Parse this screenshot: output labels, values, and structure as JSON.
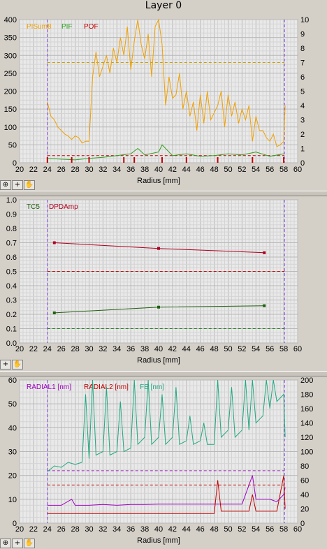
{
  "title": "Layer 0",
  "tool_icons": [
    "crosshair-icon",
    "plus-icon",
    "hand-icon"
  ],
  "chart_data": [
    {
      "type": "line",
      "xlabel": "Radius [mm]",
      "xlim": [
        20,
        60
      ],
      "xticks": [
        20,
        22,
        24,
        26,
        28,
        30,
        32,
        34,
        36,
        38,
        40,
        42,
        44,
        46,
        48,
        50,
        52,
        54,
        56,
        58,
        60
      ],
      "ylim": [
        0,
        400
      ],
      "yticks": [
        0,
        50,
        100,
        150,
        200,
        250,
        300,
        350,
        400
      ],
      "y2lim": [
        0,
        10
      ],
      "y2ticks": [
        0,
        1,
        2,
        3,
        4,
        5,
        6,
        7,
        8,
        9,
        10
      ],
      "grid": true,
      "markers": [
        24,
        58.1
      ],
      "thresholds": [
        {
          "y": 280,
          "color": "#c8a000"
        },
        {
          "y": 20,
          "color": "#c00000"
        }
      ],
      "series": [
        {
          "name": "PISum8",
          "color": "#f0a000",
          "axis": "left",
          "x": [
            24,
            24.5,
            25,
            25.5,
            26,
            26.5,
            27,
            27.5,
            28,
            28.5,
            29,
            29.5,
            30,
            30.5,
            31,
            31.5,
            32,
            32.5,
            33,
            33.5,
            34,
            34.5,
            35,
            35.5,
            36,
            36.5,
            37,
            37.5,
            38,
            38.5,
            39,
            39.5,
            40,
            40.5,
            41,
            41.5,
            42,
            42.5,
            43,
            43.5,
            44,
            44.5,
            45,
            45.5,
            46,
            46.5,
            47,
            47.5,
            48,
            48.5,
            49,
            49.5,
            50,
            50.5,
            51,
            51.5,
            52,
            52.5,
            53,
            53.5,
            54,
            54.5,
            55,
            55.5,
            56,
            56.5,
            57,
            57.5,
            58,
            58.2
          ],
          "y": [
            170,
            130,
            120,
            100,
            90,
            80,
            75,
            65,
            75,
            70,
            55,
            60,
            60,
            240,
            310,
            240,
            270,
            300,
            250,
            320,
            280,
            350,
            300,
            380,
            260,
            340,
            400,
            330,
            290,
            360,
            240,
            380,
            400,
            330,
            160,
            240,
            180,
            190,
            250,
            150,
            200,
            130,
            170,
            90,
            190,
            110,
            200,
            120,
            140,
            160,
            200,
            100,
            190,
            130,
            170,
            110,
            150,
            120,
            160,
            60,
            130,
            90,
            90,
            70,
            60,
            80,
            45,
            50,
            60,
            160
          ]
        },
        {
          "name": "PIF",
          "color": "#30a020",
          "axis": "left",
          "x": [
            24,
            26,
            28,
            30,
            32,
            34,
            36,
            37,
            38,
            40,
            40.5,
            42,
            44,
            46,
            48,
            50,
            52,
            54,
            56,
            58
          ],
          "y": [
            12,
            10,
            8,
            12,
            15,
            20,
            25,
            40,
            22,
            30,
            50,
            20,
            25,
            18,
            20,
            25,
            22,
            30,
            18,
            25
          ]
        },
        {
          "name": "POF",
          "color": "#c00000",
          "axis": "left",
          "x": [
            24,
            27.5,
            30,
            35,
            36.5,
            40.5,
            44,
            48.5,
            53.5,
            58
          ],
          "y": [
            2,
            2,
            2,
            2,
            2,
            2,
            2,
            2,
            2,
            2
          ]
        }
      ]
    },
    {
      "type": "line",
      "xlabel": "Radius [mm]",
      "xlim": [
        20,
        60
      ],
      "xticks": [
        20,
        22,
        24,
        26,
        28,
        30,
        32,
        34,
        36,
        38,
        40,
        42,
        44,
        46,
        48,
        50,
        52,
        54,
        56,
        58,
        60
      ],
      "ylim": [
        0,
        1
      ],
      "yticks": [
        0,
        0.1,
        0.2,
        0.3,
        0.4,
        0.5,
        0.6,
        0.7,
        0.8,
        0.9,
        1.0
      ],
      "grid": true,
      "markers": [
        24,
        58.1
      ],
      "thresholds": [
        {
          "y": 0.5,
          "color": "#c00000"
        },
        {
          "y": 0.1,
          "color": "#208020"
        }
      ],
      "series": [
        {
          "name": "TC5",
          "color": "#206010",
          "axis": "left",
          "x": [
            25,
            40,
            55.2
          ],
          "y": [
            0.21,
            0.25,
            0.26
          ]
        },
        {
          "name": "DPDAmp",
          "color": "#b00020",
          "axis": "left",
          "x": [
            25,
            40,
            55.2
          ],
          "y": [
            0.7,
            0.66,
            0.63
          ]
        }
      ]
    },
    {
      "type": "line",
      "xlabel": "Radius [mm]",
      "xlim": [
        20,
        60
      ],
      "xticks": [
        20,
        22,
        24,
        26,
        28,
        30,
        32,
        34,
        36,
        38,
        40,
        42,
        44,
        46,
        48,
        50,
        52,
        54,
        56,
        58,
        60
      ],
      "ylim": [
        0,
        60
      ],
      "yticks": [
        0,
        10,
        20,
        30,
        40,
        50,
        60
      ],
      "y2lim": [
        0,
        200
      ],
      "y2ticks": [
        0,
        20,
        40,
        60,
        80,
        100,
        120,
        140,
        160,
        180,
        200
      ],
      "grid": true,
      "markers": [
        24,
        58.1
      ],
      "thresholds": [
        {
          "y": 22,
          "color": "#a020c0"
        },
        {
          "y": 16,
          "color": "#c00000"
        }
      ],
      "series": [
        {
          "name": "RADIAL1 [nm]",
          "color": "#a000c0",
          "axis": "left",
          "x": [
            24,
            26,
            27.5,
            28,
            30,
            32,
            34,
            36,
            38,
            40,
            42,
            44,
            46,
            48,
            50,
            52,
            53.5,
            54,
            56,
            57,
            58,
            58.2
          ],
          "y": [
            7.5,
            7.5,
            10,
            7.5,
            7.5,
            7.8,
            7.5,
            7.8,
            7.8,
            8,
            8,
            8,
            8,
            8,
            8,
            8,
            20,
            10,
            10,
            9,
            12,
            15
          ]
        },
        {
          "name": "RADIAL2 [nm]",
          "color": "#c00000",
          "axis": "left",
          "x": [
            24,
            26,
            28,
            30,
            32,
            34,
            36,
            38,
            40,
            42,
            44,
            46,
            48,
            48.5,
            49,
            50,
            52,
            53,
            53.5,
            54,
            56,
            57,
            58,
            58.2
          ],
          "y": [
            4,
            4,
            4,
            4,
            4,
            4,
            4,
            4,
            4,
            4,
            4,
            4,
            4,
            18,
            5,
            5,
            5,
            5,
            12,
            5,
            5,
            5,
            20,
            6
          ]
        },
        {
          "name": "FE [nm]",
          "color": "#20a880",
          "axis": "right",
          "x": [
            24,
            25,
            26,
            27,
            28,
            29,
            29.5,
            30,
            30.5,
            31,
            32,
            32.5,
            33,
            34,
            34.5,
            35,
            36,
            36.5,
            37,
            38,
            38.5,
            39,
            40,
            40.5,
            41,
            42,
            42.5,
            43,
            44,
            44.5,
            45,
            46,
            46.5,
            47,
            48,
            48.5,
            49,
            50,
            50.5,
            51,
            52,
            52.5,
            53,
            53.5,
            54,
            55,
            55.5,
            56,
            56.5,
            57,
            58,
            58.2
          ],
          "y": [
            72,
            80,
            78,
            85,
            82,
            85,
            180,
            90,
            200,
            95,
            100,
            190,
            95,
            100,
            170,
            100,
            105,
            200,
            110,
            120,
            200,
            110,
            120,
            180,
            110,
            120,
            190,
            110,
            115,
            150,
            110,
            115,
            140,
            110,
            110,
            200,
            120,
            130,
            190,
            120,
            130,
            200,
            130,
            200,
            140,
            150,
            200,
            160,
            200,
            170,
            180,
            120
          ]
        }
      ]
    }
  ]
}
